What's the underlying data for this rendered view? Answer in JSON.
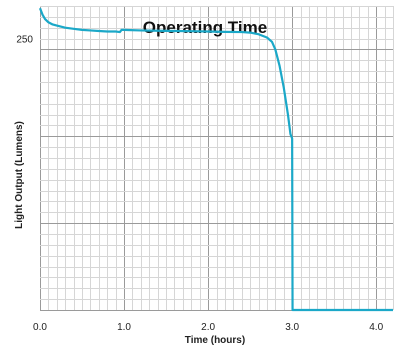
{
  "chart_data": {
    "type": "line",
    "title": "Operating Time",
    "xlabel": "Time (hours)",
    "ylabel": "Light Output (Lumens)",
    "xlim": [
      0,
      4.2
    ],
    "ylim": [
      0,
      280
    ],
    "x_ticks": [
      {
        "value": 0,
        "label": "0.0"
      },
      {
        "value": 1,
        "label": "1.0"
      },
      {
        "value": 2,
        "label": "2.0"
      },
      {
        "value": 3,
        "label": "3.0"
      },
      {
        "value": 4,
        "label": "4.0"
      }
    ],
    "y_ticks": [
      {
        "value": 250,
        "label": "250"
      }
    ],
    "grid": true,
    "series": [
      {
        "color": "#1ba8c8",
        "points": [
          [
            0.0,
            278
          ],
          [
            0.03,
            272
          ],
          [
            0.06,
            268
          ],
          [
            0.1,
            265
          ],
          [
            0.15,
            263
          ],
          [
            0.2,
            262
          ],
          [
            0.3,
            260
          ],
          [
            0.4,
            259
          ],
          [
            0.5,
            258
          ],
          [
            0.6,
            257.5
          ],
          [
            0.7,
            257
          ],
          [
            0.8,
            256.5
          ],
          [
            0.9,
            256.5
          ],
          [
            0.95,
            256
          ],
          [
            0.97,
            258
          ],
          [
            1.0,
            258
          ],
          [
            1.2,
            257.5
          ],
          [
            1.4,
            257.2
          ],
          [
            1.6,
            257
          ],
          [
            1.8,
            256.8
          ],
          [
            2.0,
            256.5
          ],
          [
            2.2,
            256.2
          ],
          [
            2.4,
            256
          ],
          [
            2.5,
            255.5
          ],
          [
            2.6,
            254
          ],
          [
            2.7,
            251
          ],
          [
            2.76,
            247
          ],
          [
            2.8,
            240
          ],
          [
            2.85,
            225
          ],
          [
            2.9,
            205
          ],
          [
            2.95,
            180
          ],
          [
            2.98,
            162
          ],
          [
            3.0,
            158
          ],
          [
            3.005,
            0
          ],
          [
            3.1,
            0
          ],
          [
            3.6,
            0
          ],
          [
            4.0,
            0
          ],
          [
            4.2,
            0
          ]
        ]
      }
    ]
  }
}
